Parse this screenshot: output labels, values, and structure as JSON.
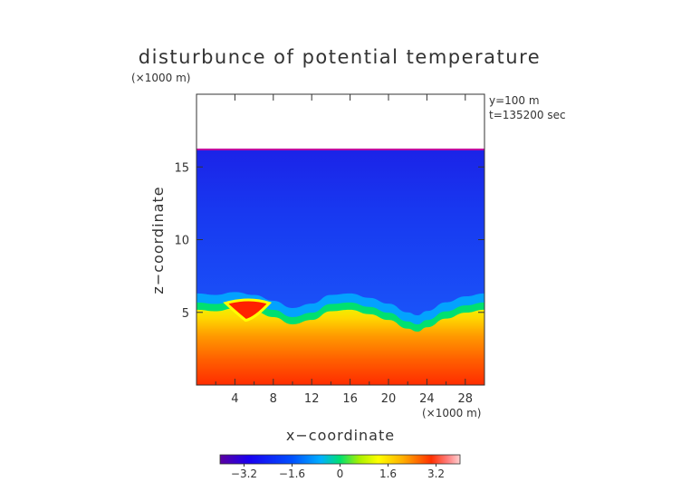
{
  "chart_data": {
    "type": "heatmap",
    "title": "disturbunce of potential temperature",
    "unit_note": "(×1000 m)",
    "info_lines": [
      "y=100  m",
      "t=135200 sec"
    ],
    "xlabel": "x−coordinate",
    "ylabel": "z−coordinate",
    "x_unit_note": "(×1000 m)",
    "xlim": [
      0,
      30
    ],
    "ylim": [
      0,
      20
    ],
    "x_ticks": [
      4,
      8,
      12,
      16,
      20,
      24,
      28
    ],
    "x_tick_labels": [
      "4",
      "8",
      "12",
      "16",
      "20",
      "24",
      "28"
    ],
    "y_ticks": [
      5,
      10,
      15
    ],
    "y_tick_labels": [
      "5",
      "10",
      "15"
    ],
    "colorbar": {
      "range": [
        -4,
        4
      ],
      "ticks": [
        -3.2,
        -1.6,
        0,
        1.6,
        3.2
      ],
      "tick_labels": [
        "−3.2",
        "−1.6",
        "0",
        "1.6",
        "3.2"
      ]
    },
    "field_top_z": 16.2,
    "interface_z": [
      [
        0,
        5.3
      ],
      [
        2,
        5.2
      ],
      [
        4,
        5.4
      ],
      [
        6,
        5.2
      ],
      [
        8,
        4.8
      ],
      [
        10,
        4.3
      ],
      [
        12,
        4.6
      ],
      [
        14,
        5.2
      ],
      [
        16,
        5.3
      ],
      [
        18,
        5.0
      ],
      [
        20,
        4.6
      ],
      [
        22,
        4.0
      ],
      [
        23,
        3.8
      ],
      [
        24,
        4.1
      ],
      [
        26,
        4.7
      ],
      [
        28,
        5.1
      ],
      [
        30,
        5.3
      ]
    ],
    "warm_anomaly": {
      "x": 5.5,
      "z": 5.2,
      "value": 3.0
    }
  }
}
